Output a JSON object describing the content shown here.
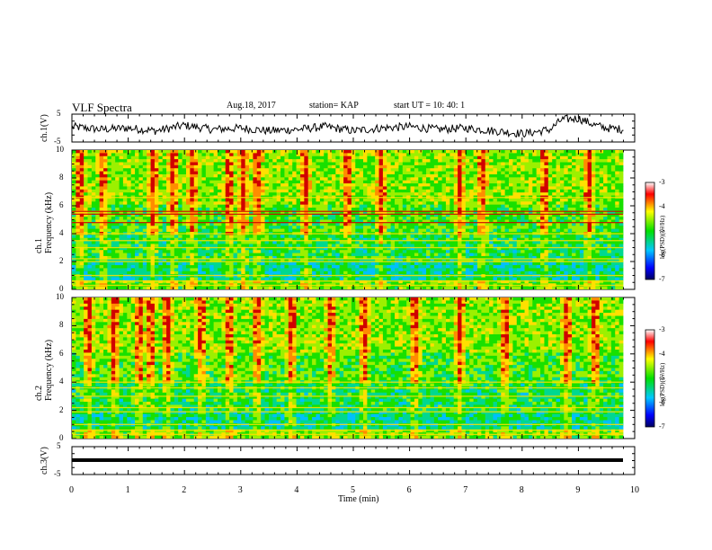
{
  "header": {
    "title": "VLF Spectra",
    "date": "Aug.18, 2017",
    "station": "station= KAP",
    "start": "start  UT =   10: 40: 1"
  },
  "colors": {
    "spec_low": "#0000c8",
    "spec_mid": "#18e000",
    "spec_high": "#ffe000",
    "spec_top": "#d00000",
    "trace": "#000000"
  },
  "chart_data": [
    {
      "type": "line",
      "panel": "ch1-waveform",
      "ylabel": "ch.1(V)",
      "ylim": [
        -5,
        5
      ],
      "yticks": [
        "5",
        "-5"
      ],
      "x": [
        0,
        0.5,
        1,
        1.5,
        2,
        2.5,
        3,
        3.5,
        4,
        4.5,
        5,
        5.5,
        6,
        6.5,
        7,
        7.5,
        8,
        8.2,
        8.5,
        8.7,
        9,
        9.3,
        9.5,
        9.8
      ],
      "y": [
        0.5,
        -0.5,
        0,
        -1,
        1,
        -0.5,
        0,
        -1,
        -0.5,
        0.5,
        -1,
        0,
        0.5,
        -0.5,
        0,
        -1,
        -2,
        -1.5,
        -0.5,
        3,
        3.5,
        1,
        0,
        -0.5
      ]
    },
    {
      "type": "heatmap",
      "panel": "ch1-spectrogram",
      "ylabel": "ch.1\nFrequency (kHz)",
      "ylim": [
        0,
        10
      ],
      "yticks": [
        "0",
        "2",
        "4",
        "6",
        "8",
        "10"
      ],
      "colorbar": {
        "label": "log(PSD)(V²/Hz)",
        "range": [
          -7,
          -3
        ],
        "ticks": [
          "-3",
          "-4",
          "-5",
          "-6",
          "-7"
        ]
      },
      "bands_khz": [
        0.3,
        0.6,
        1.0,
        2.0,
        2.2,
        3.0,
        3.5,
        4.0,
        4.8,
        5.4,
        5.6,
        6.6
      ],
      "bursts_min": [
        0.15,
        0.55,
        1.45,
        1.8,
        2.15,
        2.8,
        3.05,
        3.3,
        4.15,
        4.9,
        5.5,
        6.9,
        7.3,
        8.4,
        9.2
      ]
    },
    {
      "type": "heatmap",
      "panel": "ch2-spectrogram",
      "ylabel": "ch.2\nFrequency (kHz)",
      "ylim": [
        0,
        10
      ],
      "yticks": [
        "0",
        "2",
        "4",
        "6",
        "8",
        "10"
      ],
      "colorbar": {
        "label": "log(PSD)(V²/Hz)",
        "range": [
          -7,
          -3
        ],
        "ticks": [
          "-3",
          "-4",
          "-5",
          "-6",
          "-7"
        ]
      },
      "bands_khz": [
        0.3,
        0.6,
        1.0,
        1.9,
        2.2,
        3.0,
        3.6,
        4.0
      ],
      "bursts_min": [
        0.3,
        0.75,
        1.2,
        1.4,
        1.7,
        2.3,
        2.8,
        3.3,
        3.9,
        4.6,
        5.2,
        6.1,
        6.9,
        7.7,
        8.8,
        9.3
      ]
    },
    {
      "type": "line",
      "panel": "ch3-waveform",
      "ylabel": "ch.3(V)",
      "ylim": [
        -5,
        5
      ],
      "yticks": [
        "5",
        "-5"
      ],
      "x": [
        0,
        9.8
      ],
      "y": [
        0,
        0
      ]
    }
  ],
  "xaxis": {
    "label": "Time (min)",
    "range": [
      0,
      10
    ],
    "ticks": [
      "0",
      "1",
      "2",
      "3",
      "4",
      "5",
      "6",
      "7",
      "8",
      "9",
      "10"
    ]
  }
}
